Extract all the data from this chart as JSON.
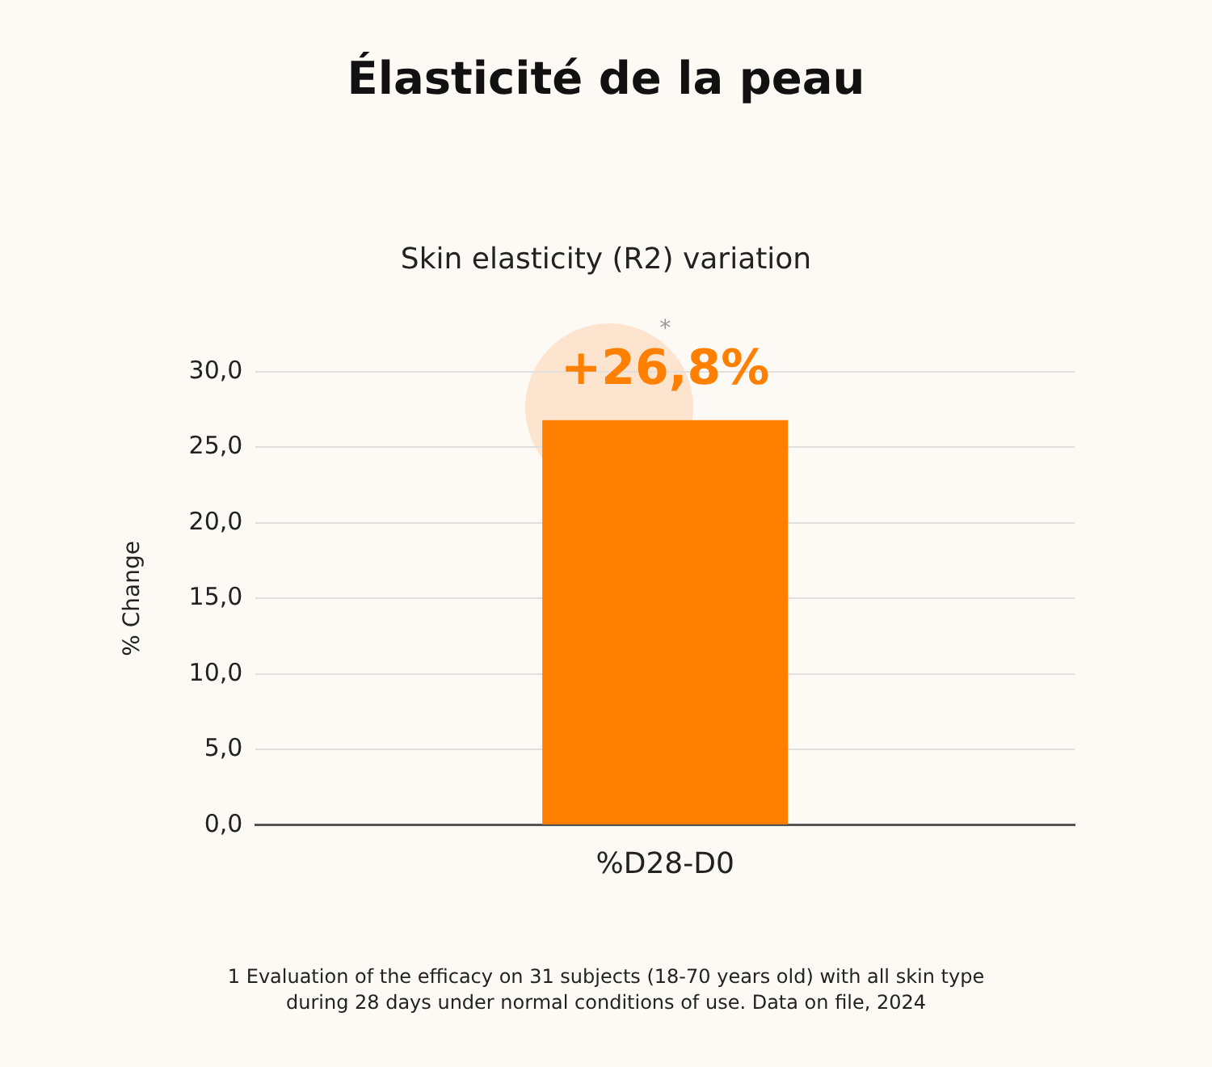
{
  "chart_data": {
    "type": "bar",
    "title": "Élasticité de la peau",
    "subtitle": "Skin elasticity (R2) variation",
    "ylabel": "% Change",
    "categories": [
      "%D28-D0"
    ],
    "values": [
      26.8
    ],
    "value_labels": [
      "+26,8%"
    ],
    "color": "#ff7f00",
    "ylim": [
      0,
      30
    ],
    "yticks": [
      {
        "value": 0,
        "label": "0,0"
      },
      {
        "value": 5,
        "label": "5,0"
      },
      {
        "value": 10,
        "label": "10,0"
      },
      {
        "value": 15,
        "label": "15,0"
      },
      {
        "value": 20,
        "label": "20,0"
      },
      {
        "value": 25,
        "label": "25,0"
      },
      {
        "value": 30,
        "label": "30,0"
      }
    ],
    "grid": "y",
    "legend": false,
    "annotations": [
      "*",
      "1 Evaluation of the efficacy on 31 subjects (18-70 years old) with all skin type during 28 days under normal conditions of use. Data on file, 2024"
    ]
  }
}
